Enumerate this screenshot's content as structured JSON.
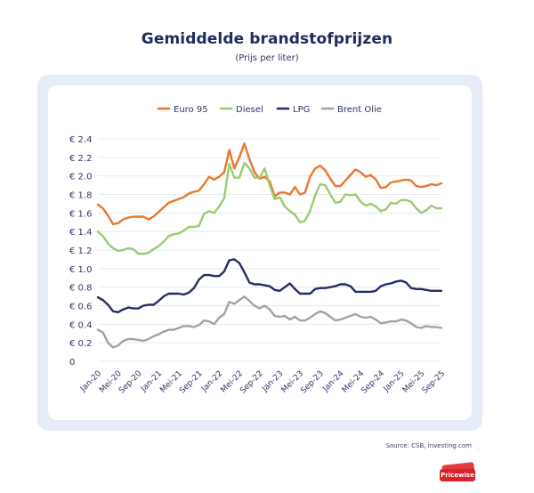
{
  "header": {
    "title": "Gemiddelde brandstofprijzen",
    "subtitle": "(Prijs per liter)"
  },
  "source": "Source: CSB, investing.com",
  "logo": {
    "text": "Pricewise"
  },
  "colors": {
    "euro95": "#e8772e",
    "diesel": "#9bcb72",
    "lpg": "#232b6b",
    "brent": "#a3a3a3",
    "card_bg": "#e7edf8",
    "logo_red": "#d8222c"
  },
  "chart_data": {
    "type": "line",
    "title": "Gemiddelde brandstofprijzen",
    "subtitle": "(Prijs per liter)",
    "xlabel": "",
    "ylabel": "",
    "ylim": [
      0,
      2.4
    ],
    "y_ticks": [
      0,
      0.2,
      0.4,
      0.6,
      0.8,
      1.0,
      1.2,
      1.4,
      1.6,
      1.8,
      2.0,
      2.2,
      2.4
    ],
    "y_tick_labels": [
      "0",
      "€ 0.2",
      "€ 0.4",
      "€ 0.6",
      "€ 0.8",
      "€ 1.0",
      "€ 1.2",
      "€ 1.4",
      "€ 1.6",
      "€ 1.8",
      "€ 2.0",
      "€ 2.2",
      "€ 2.4"
    ],
    "x_start": "Jan-20",
    "x_end": "Sep-25",
    "x_tick_labels": [
      "Jan-20",
      "Mei-20",
      "Sep-20",
      "Jan-21",
      "Mei-21",
      "Sep-21",
      "Jan-22",
      "Mei-22",
      "Sep-22",
      "Jan-23",
      "Mei-23",
      "Sep-23",
      "Jan-24",
      "Mei-24",
      "Sep-24",
      "Jan-25",
      "Mei-25",
      "Sep-25"
    ],
    "grid": true,
    "legend_position": "top",
    "series": [
      {
        "name": "Euro 95",
        "color": "#e8772e",
        "points": [
          [
            "Jan-20",
            1.69
          ],
          [
            "Feb-20",
            1.65
          ],
          [
            "Mar-20",
            1.57
          ],
          [
            "Apr-20",
            1.48
          ],
          [
            "May-20",
            1.49
          ],
          [
            "Jun-20",
            1.53
          ],
          [
            "Jul-20",
            1.55
          ],
          [
            "Aug-20",
            1.56
          ],
          [
            "Sep-20",
            1.56
          ],
          [
            "Oct-20",
            1.56
          ],
          [
            "Nov-20",
            1.53
          ],
          [
            "Dec-20",
            1.56
          ],
          [
            "Jan-21",
            1.61
          ],
          [
            "Feb-21",
            1.66
          ],
          [
            "Mar-21",
            1.71
          ],
          [
            "Apr-21",
            1.73
          ],
          [
            "May-21",
            1.75
          ],
          [
            "Jun-21",
            1.77
          ],
          [
            "Jul-21",
            1.81
          ],
          [
            "Aug-21",
            1.83
          ],
          [
            "Sep-21",
            1.84
          ],
          [
            "Oct-21",
            1.91
          ],
          [
            "Nov-21",
            1.99
          ],
          [
            "Dec-21",
            1.96
          ],
          [
            "Jan-22",
            1.99
          ],
          [
            "Feb-22",
            2.04
          ],
          [
            "Mar-22",
            2.28
          ],
          [
            "Apr-22",
            2.08
          ],
          [
            "May-22",
            2.2
          ],
          [
            "Jun-22",
            2.35
          ],
          [
            "Jul-22",
            2.18
          ],
          [
            "Aug-22",
            2.04
          ],
          [
            "Sep-22",
            1.97
          ],
          [
            "Oct-22",
            1.99
          ],
          [
            "Nov-22",
            1.94
          ],
          [
            "Dec-22",
            1.78
          ],
          [
            "Jan-23",
            1.82
          ],
          [
            "Feb-23",
            1.82
          ],
          [
            "Mar-23",
            1.8
          ],
          [
            "Apr-23",
            1.88
          ],
          [
            "May-23",
            1.8
          ],
          [
            "Jun-23",
            1.82
          ],
          [
            "Jul-23",
            1.99
          ],
          [
            "Aug-23",
            2.08
          ],
          [
            "Sep-23",
            2.11
          ],
          [
            "Oct-23",
            2.06
          ],
          [
            "Nov-23",
            1.97
          ],
          [
            "Dec-23",
            1.89
          ],
          [
            "Jan-24",
            1.89
          ],
          [
            "Feb-24",
            1.95
          ],
          [
            "Mar-24",
            2.01
          ],
          [
            "Apr-24",
            2.07
          ],
          [
            "May-24",
            2.04
          ],
          [
            "Jun-24",
            1.99
          ],
          [
            "Jul-24",
            2.01
          ],
          [
            "Aug-24",
            1.96
          ],
          [
            "Sep-24",
            1.87
          ],
          [
            "Oct-24",
            1.88
          ],
          [
            "Nov-24",
            1.93
          ],
          [
            "Dec-24",
            1.94
          ],
          [
            "Jan-25",
            1.95
          ],
          [
            "Feb-25",
            1.96
          ],
          [
            "Mar-25",
            1.95
          ],
          [
            "Apr-25",
            1.89
          ],
          [
            "May-25",
            1.88
          ],
          [
            "Jun-25",
            1.89
          ],
          [
            "Jul-25",
            1.91
          ],
          [
            "Aug-25",
            1.9
          ],
          [
            "Sep-25",
            1.92
          ]
        ]
      },
      {
        "name": "Diesel",
        "color": "#9bcb72",
        "points": [
          [
            "Jan-20",
            1.4
          ],
          [
            "Feb-20",
            1.35
          ],
          [
            "Mar-20",
            1.27
          ],
          [
            "Apr-20",
            1.22
          ],
          [
            "May-20",
            1.19
          ],
          [
            "Jun-20",
            1.2
          ],
          [
            "Jul-20",
            1.22
          ],
          [
            "Aug-20",
            1.21
          ],
          [
            "Sep-20",
            1.16
          ],
          [
            "Oct-20",
            1.16
          ],
          [
            "Nov-20",
            1.17
          ],
          [
            "Dec-20",
            1.21
          ],
          [
            "Jan-21",
            1.24
          ],
          [
            "Feb-21",
            1.29
          ],
          [
            "Mar-21",
            1.35
          ],
          [
            "Apr-21",
            1.37
          ],
          [
            "May-21",
            1.38
          ],
          [
            "Jun-21",
            1.41
          ],
          [
            "Jul-21",
            1.45
          ],
          [
            "Aug-21",
            1.45
          ],
          [
            "Sep-21",
            1.46
          ],
          [
            "Oct-21",
            1.59
          ],
          [
            "Nov-21",
            1.62
          ],
          [
            "Dec-21",
            1.6
          ],
          [
            "Jan-22",
            1.67
          ],
          [
            "Feb-22",
            1.76
          ],
          [
            "Mar-22",
            2.13
          ],
          [
            "Apr-22",
            1.98
          ],
          [
            "May-22",
            1.98
          ],
          [
            "Jun-22",
            2.14
          ],
          [
            "Jul-22",
            2.08
          ],
          [
            "Aug-22",
            1.98
          ],
          [
            "Sep-22",
            1.98
          ],
          [
            "Oct-22",
            2.08
          ],
          [
            "Nov-22",
            1.9
          ],
          [
            "Dec-22",
            1.75
          ],
          [
            "Jan-23",
            1.77
          ],
          [
            "Feb-23",
            1.67
          ],
          [
            "Mar-23",
            1.62
          ],
          [
            "Apr-23",
            1.58
          ],
          [
            "May-23",
            1.5
          ],
          [
            "Jun-23",
            1.52
          ],
          [
            "Jul-23",
            1.62
          ],
          [
            "Aug-23",
            1.79
          ],
          [
            "Sep-23",
            1.91
          ],
          [
            "Oct-23",
            1.9
          ],
          [
            "Nov-23",
            1.8
          ],
          [
            "Dec-23",
            1.71
          ],
          [
            "Jan-24",
            1.72
          ],
          [
            "Feb-24",
            1.8
          ],
          [
            "Mar-24",
            1.79
          ],
          [
            "Apr-24",
            1.8
          ],
          [
            "May-24",
            1.72
          ],
          [
            "Jun-24",
            1.68
          ],
          [
            "Jul-24",
            1.7
          ],
          [
            "Aug-24",
            1.67
          ],
          [
            "Sep-24",
            1.62
          ],
          [
            "Oct-24",
            1.64
          ],
          [
            "Nov-24",
            1.71
          ],
          [
            "Dec-24",
            1.7
          ],
          [
            "Jan-25",
            1.74
          ],
          [
            "Feb-25",
            1.74
          ],
          [
            "Mar-25",
            1.72
          ],
          [
            "Apr-25",
            1.65
          ],
          [
            "May-25",
            1.6
          ],
          [
            "Jun-25",
            1.63
          ],
          [
            "Jul-25",
            1.68
          ],
          [
            "Aug-25",
            1.65
          ],
          [
            "Sep-25",
            1.65
          ]
        ]
      },
      {
        "name": "LPG",
        "color": "#232b6b",
        "points": [
          [
            "Jan-20",
            0.69
          ],
          [
            "Feb-20",
            0.66
          ],
          [
            "Mar-20",
            0.61
          ],
          [
            "Apr-20",
            0.54
          ],
          [
            "May-20",
            0.53
          ],
          [
            "Jun-20",
            0.56
          ],
          [
            "Jul-20",
            0.58
          ],
          [
            "Aug-20",
            0.57
          ],
          [
            "Sep-20",
            0.57
          ],
          [
            "Oct-20",
            0.6
          ],
          [
            "Nov-20",
            0.61
          ],
          [
            "Dec-20",
            0.61
          ],
          [
            "Jan-21",
            0.65
          ],
          [
            "Feb-21",
            0.7
          ],
          [
            "Mar-21",
            0.73
          ],
          [
            "Apr-21",
            0.73
          ],
          [
            "May-21",
            0.73
          ],
          [
            "Jun-21",
            0.72
          ],
          [
            "Jul-21",
            0.74
          ],
          [
            "Aug-21",
            0.79
          ],
          [
            "Sep-21",
            0.88
          ],
          [
            "Oct-21",
            0.93
          ],
          [
            "Nov-21",
            0.93
          ],
          [
            "Dec-21",
            0.92
          ],
          [
            "Jan-22",
            0.92
          ],
          [
            "Feb-22",
            0.97
          ],
          [
            "Mar-22",
            1.09
          ],
          [
            "Apr-22",
            1.1
          ],
          [
            "May-22",
            1.06
          ],
          [
            "Jun-22",
            0.96
          ],
          [
            "Jul-22",
            0.85
          ],
          [
            "Aug-22",
            0.83
          ],
          [
            "Sep-22",
            0.83
          ],
          [
            "Oct-22",
            0.82
          ],
          [
            "Nov-22",
            0.81
          ],
          [
            "Dec-22",
            0.77
          ],
          [
            "Jan-23",
            0.76
          ],
          [
            "Feb-23",
            0.8
          ],
          [
            "Mar-23",
            0.84
          ],
          [
            "Apr-23",
            0.78
          ],
          [
            "May-23",
            0.73
          ],
          [
            "Jun-23",
            0.73
          ],
          [
            "Jul-23",
            0.73
          ],
          [
            "Aug-23",
            0.78
          ],
          [
            "Sep-23",
            0.79
          ],
          [
            "Oct-23",
            0.79
          ],
          [
            "Nov-23",
            0.8
          ],
          [
            "Dec-23",
            0.81
          ],
          [
            "Jan-24",
            0.83
          ],
          [
            "Feb-24",
            0.83
          ],
          [
            "Mar-24",
            0.81
          ],
          [
            "Apr-24",
            0.75
          ],
          [
            "May-24",
            0.75
          ],
          [
            "Jun-24",
            0.75
          ],
          [
            "Jul-24",
            0.75
          ],
          [
            "Aug-24",
            0.76
          ],
          [
            "Sep-24",
            0.81
          ],
          [
            "Oct-24",
            0.83
          ],
          [
            "Nov-24",
            0.84
          ],
          [
            "Dec-24",
            0.86
          ],
          [
            "Jan-25",
            0.87
          ],
          [
            "Feb-25",
            0.85
          ],
          [
            "Mar-25",
            0.79
          ],
          [
            "Apr-25",
            0.78
          ],
          [
            "May-25",
            0.78
          ],
          [
            "Jun-25",
            0.77
          ],
          [
            "Jul-25",
            0.76
          ],
          [
            "Aug-25",
            0.76
          ],
          [
            "Sep-25",
            0.76
          ]
        ]
      },
      {
        "name": "Brent Olie",
        "color": "#a3a3a3",
        "points": [
          [
            "Jan-20",
            0.34
          ],
          [
            "Feb-20",
            0.31
          ],
          [
            "Mar-20",
            0.2
          ],
          [
            "Apr-20",
            0.15
          ],
          [
            "May-20",
            0.17
          ],
          [
            "Jun-20",
            0.22
          ],
          [
            "Jul-20",
            0.24
          ],
          [
            "Aug-20",
            0.24
          ],
          [
            "Sep-20",
            0.23
          ],
          [
            "Oct-20",
            0.22
          ],
          [
            "Nov-20",
            0.24
          ],
          [
            "Dec-20",
            0.27
          ],
          [
            "Jan-21",
            0.29
          ],
          [
            "Feb-21",
            0.32
          ],
          [
            "Mar-21",
            0.34
          ],
          [
            "Apr-21",
            0.34
          ],
          [
            "May-21",
            0.36
          ],
          [
            "Jun-21",
            0.38
          ],
          [
            "Jul-21",
            0.38
          ],
          [
            "Aug-21",
            0.37
          ],
          [
            "Sep-21",
            0.39
          ],
          [
            "Oct-21",
            0.44
          ],
          [
            "Nov-21",
            0.43
          ],
          [
            "Dec-21",
            0.4
          ],
          [
            "Jan-22",
            0.47
          ],
          [
            "Feb-22",
            0.51
          ],
          [
            "Mar-22",
            0.64
          ],
          [
            "Apr-22",
            0.62
          ],
          [
            "May-22",
            0.66
          ],
          [
            "Jun-22",
            0.7
          ],
          [
            "Jul-22",
            0.65
          ],
          [
            "Aug-22",
            0.6
          ],
          [
            "Sep-22",
            0.57
          ],
          [
            "Oct-22",
            0.6
          ],
          [
            "Nov-22",
            0.56
          ],
          [
            "Dec-22",
            0.49
          ],
          [
            "Jan-23",
            0.48
          ],
          [
            "Feb-23",
            0.49
          ],
          [
            "Mar-23",
            0.45
          ],
          [
            "Apr-23",
            0.48
          ],
          [
            "May-23",
            0.44
          ],
          [
            "Jun-23",
            0.44
          ],
          [
            "Jul-23",
            0.47
          ],
          [
            "Aug-23",
            0.51
          ],
          [
            "Sep-23",
            0.54
          ],
          [
            "Oct-23",
            0.52
          ],
          [
            "Nov-23",
            0.48
          ],
          [
            "Dec-23",
            0.44
          ],
          [
            "Jan-24",
            0.45
          ],
          [
            "Feb-24",
            0.47
          ],
          [
            "Mar-24",
            0.49
          ],
          [
            "Apr-24",
            0.51
          ],
          [
            "May-24",
            0.48
          ],
          [
            "Jun-24",
            0.47
          ],
          [
            "Jul-24",
            0.48
          ],
          [
            "Aug-24",
            0.45
          ],
          [
            "Sep-24",
            0.41
          ],
          [
            "Oct-24",
            0.42
          ],
          [
            "Nov-24",
            0.43
          ],
          [
            "Dec-24",
            0.43
          ],
          [
            "Jan-25",
            0.45
          ],
          [
            "Feb-25",
            0.44
          ],
          [
            "Mar-25",
            0.41
          ],
          [
            "Apr-25",
            0.37
          ],
          [
            "May-25",
            0.36
          ],
          [
            "Jun-25",
            0.38
          ],
          [
            "Jul-25",
            0.37
          ],
          [
            "Aug-25",
            0.37
          ],
          [
            "Sep-25",
            0.36
          ]
        ]
      }
    ]
  }
}
